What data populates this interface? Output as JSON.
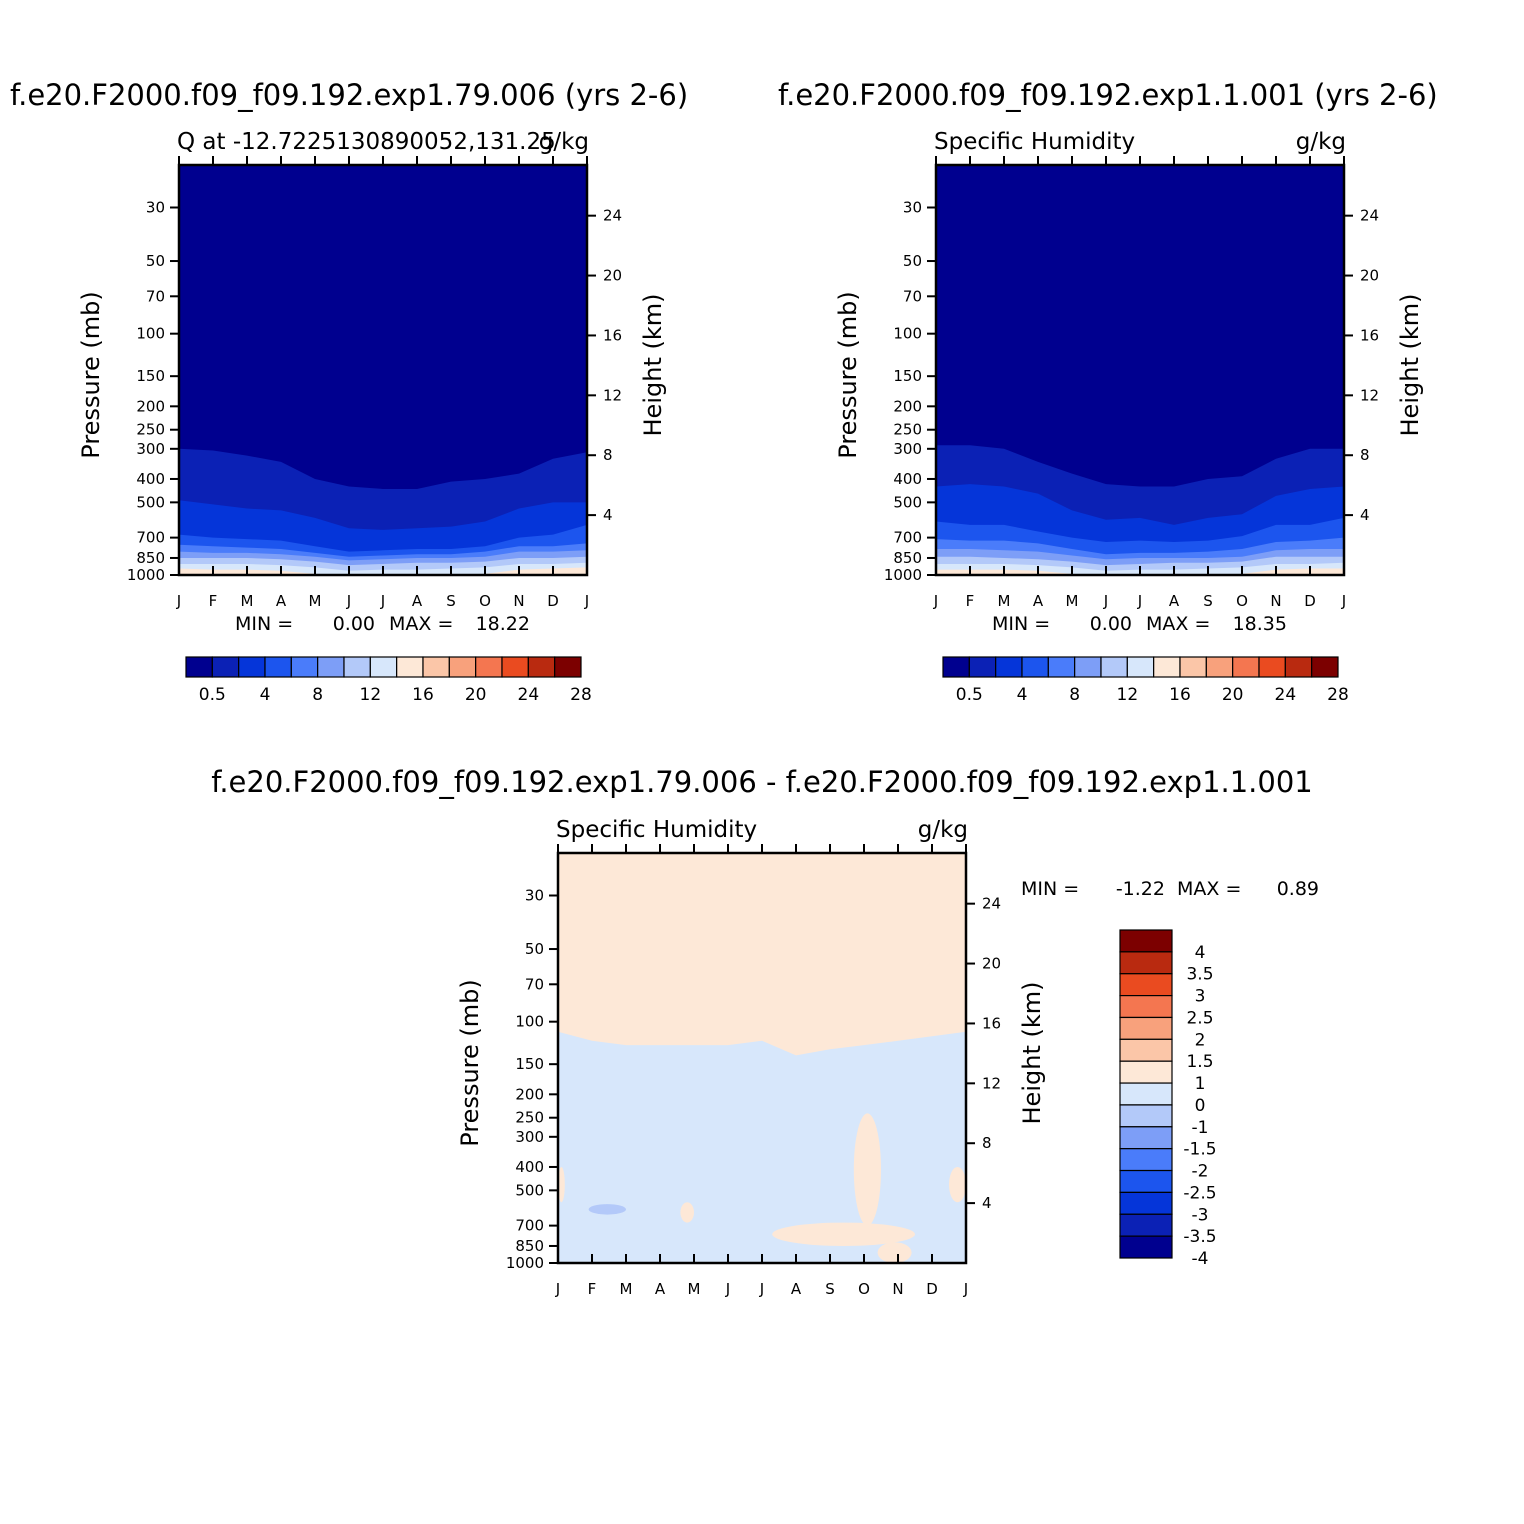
{
  "colors": {
    "q_palette": [
      "#00008f",
      "#0b21b5",
      "#0535d9",
      "#1c55ee",
      "#4a7cfa",
      "#7d9ef7",
      "#b3c9f9",
      "#d7e7fb",
      "#fde8d7",
      "#fbc6a8",
      "#f8a17c",
      "#f47650",
      "#ea4b20",
      "#b92a10",
      "#7c0000"
    ],
    "diff_palette": [
      "#00008f",
      "#0b21b5",
      "#0535d9",
      "#1c55ee",
      "#4a7cfa",
      "#7d9ef7",
      "#b3c9f9",
      "#d7e7fb",
      "#fde8d7",
      "#fbc6a8",
      "#f8a17c",
      "#f47650",
      "#ea4b20",
      "#b92a10",
      "#7c0000"
    ]
  },
  "chart_data": [
    {
      "type": "heatmap",
      "title": "f.e20.F2000.f09_f09.192.exp1.79.006 (yrs 2-6)",
      "subtitle_left": "Q at -12.7225130890052,131.25",
      "subtitle_right": "g/kg",
      "xlabel": "",
      "ylabel": "Pressure (mb)",
      "y2label": "Height (km)",
      "x_ticks": [
        "J",
        "F",
        "M",
        "A",
        "M",
        "J",
        "J",
        "A",
        "S",
        "O",
        "N",
        "D",
        "J"
      ],
      "y_ticks": [
        30,
        50,
        70,
        100,
        150,
        200,
        250,
        300,
        400,
        500,
        700,
        850,
        1000
      ],
      "y2_ticks": [
        24,
        20,
        16,
        12,
        8,
        4
      ],
      "y_scale": "log",
      "ylim": [
        1000,
        20
      ],
      "min_label": "MIN =",
      "min_value": "0.00",
      "max_label": "MAX =",
      "max_value": "18.22",
      "colorbar_labels": [
        "0.5",
        "4",
        "8",
        "12",
        "16",
        "20",
        "24",
        "28"
      ],
      "contour_levels": [
        0.5,
        2,
        4,
        6,
        8,
        10,
        12,
        14,
        16,
        18,
        20,
        22,
        24,
        26,
        28
      ],
      "contour_boundaries_mb": [
        [
          300,
          305,
          320,
          340,
          400,
          430,
          440,
          440,
          410,
          400,
          380,
          330,
          310
        ],
        [
          490,
          510,
          530,
          540,
          580,
          640,
          650,
          640,
          630,
          600,
          530,
          500,
          500
        ],
        [
          680,
          700,
          710,
          720,
          760,
          800,
          790,
          780,
          780,
          760,
          700,
          680,
          620
        ],
        [
          750,
          760,
          770,
          780,
          810,
          840,
          830,
          820,
          820,
          800,
          760,
          760,
          740
        ],
        [
          800,
          810,
          810,
          820,
          840,
          870,
          860,
          850,
          850,
          840,
          800,
          800,
          790
        ],
        [
          850,
          850,
          850,
          860,
          880,
          910,
          900,
          890,
          890,
          880,
          850,
          850,
          840
        ],
        [
          900,
          900,
          900,
          910,
          930,
          960,
          950,
          950,
          940,
          930,
          900,
          900,
          890
        ],
        [
          940,
          950,
          950,
          960,
          990,
          1000,
          1000,
          1000,
          1000,
          990,
          950,
          940,
          930
        ]
      ]
    },
    {
      "type": "heatmap",
      "title": "f.e20.F2000.f09_f09.192.exp1.1.001 (yrs 2-6)",
      "subtitle_left": "Specific Humidity",
      "subtitle_right": "g/kg",
      "xlabel": "",
      "ylabel": "Pressure (mb)",
      "y2label": "Height (km)",
      "x_ticks": [
        "J",
        "F",
        "M",
        "A",
        "M",
        "J",
        "J",
        "A",
        "S",
        "O",
        "N",
        "D",
        "J"
      ],
      "y_ticks": [
        30,
        50,
        70,
        100,
        150,
        200,
        250,
        300,
        400,
        500,
        700,
        850,
        1000
      ],
      "y2_ticks": [
        24,
        20,
        16,
        12,
        8,
        4
      ],
      "y_scale": "log",
      "ylim": [
        1000,
        20
      ],
      "min_label": "MIN =",
      "min_value": "0.00",
      "max_label": "MAX =",
      "max_value": "18.35",
      "colorbar_labels": [
        "0.5",
        "4",
        "8",
        "12",
        "16",
        "20",
        "24",
        "28"
      ],
      "contour_levels": [
        0.5,
        2,
        4,
        6,
        8,
        10,
        12,
        14,
        16,
        18,
        20,
        22,
        24,
        26,
        28
      ],
      "contour_boundaries_mb": [
        [
          290,
          290,
          300,
          340,
          380,
          420,
          430,
          430,
          400,
          390,
          330,
          300,
          300
        ],
        [
          430,
          420,
          430,
          460,
          540,
          590,
          580,
          620,
          580,
          560,
          470,
          440,
          430
        ],
        [
          600,
          620,
          620,
          660,
          700,
          730,
          720,
          730,
          720,
          690,
          620,
          620,
          580
        ],
        [
          710,
          720,
          720,
          740,
          780,
          820,
          810,
          810,
          800,
          780,
          730,
          720,
          700
        ],
        [
          780,
          780,
          790,
          800,
          830,
          860,
          850,
          850,
          850,
          840,
          790,
          780,
          780
        ],
        [
          840,
          840,
          850,
          860,
          880,
          910,
          900,
          890,
          890,
          880,
          840,
          840,
          840
        ],
        [
          900,
          900,
          900,
          910,
          930,
          960,
          950,
          950,
          940,
          930,
          900,
          900,
          890
        ],
        [
          950,
          950,
          950,
          960,
          990,
          1000,
          1000,
          1000,
          1000,
          990,
          950,
          940,
          940
        ]
      ]
    },
    {
      "type": "heatmap",
      "title": "f.e20.F2000.f09_f09.192.exp1.79.006 - f.e20.F2000.f09_f09.192.exp1.1.001",
      "subtitle_left": "Specific Humidity",
      "subtitle_right": "g/kg",
      "xlabel": "",
      "ylabel": "Pressure (mb)",
      "y2label": "Height (km)",
      "x_ticks": [
        "J",
        "F",
        "M",
        "A",
        "M",
        "J",
        "J",
        "A",
        "S",
        "O",
        "N",
        "D",
        "J"
      ],
      "y_ticks": [
        30,
        50,
        70,
        100,
        150,
        200,
        250,
        300,
        400,
        500,
        700,
        850,
        1000
      ],
      "y2_ticks": [
        24,
        20,
        16,
        12,
        8,
        4
      ],
      "y_scale": "log",
      "ylim": [
        1000,
        20
      ],
      "min_label": "MIN =",
      "min_value": "-1.22",
      "max_label": "MAX =",
      "max_value": "0.89",
      "colorbar_labels": [
        "4",
        "3.5",
        "3",
        "2.5",
        "2",
        "1.5",
        "1",
        "0",
        "-1",
        "-1.5",
        "-2",
        "-2.5",
        "-3",
        "-3.5",
        "-4"
      ],
      "contour_levels": [
        -4,
        -3.5,
        -3,
        -2.5,
        -2,
        -1.5,
        -1,
        0,
        1,
        1.5,
        2,
        2.5,
        3,
        3.5,
        4
      ],
      "background_value_upper": "0 to 1",
      "background_value_lower": "-1 to 0",
      "zero_line_mb": [
        110,
        120,
        125,
        125,
        125,
        125,
        120,
        138,
        130,
        125,
        120,
        115,
        110
      ],
      "positive_regions": [
        {
          "months": [
            8.7,
            9.5
          ],
          "mb": [
            240,
            700
          ]
        },
        {
          "months": [
            3.6,
            4.0
          ],
          "mb": [
            560,
            680
          ]
        },
        {
          "months": [
            6.3,
            10.5
          ],
          "mb": [
            680,
            850
          ]
        },
        {
          "months": [
            0.0,
            0.2
          ],
          "mb": [
            400,
            560
          ]
        },
        {
          "months": [
            11.5,
            12.0
          ],
          "mb": [
            400,
            560
          ]
        },
        {
          "months": [
            9.4,
            10.4
          ],
          "mb": [
            820,
            1000
          ]
        }
      ],
      "negative_regions": [
        {
          "months": [
            0.9,
            2.0
          ],
          "mb": [
            570,
            630
          ]
        }
      ]
    }
  ]
}
